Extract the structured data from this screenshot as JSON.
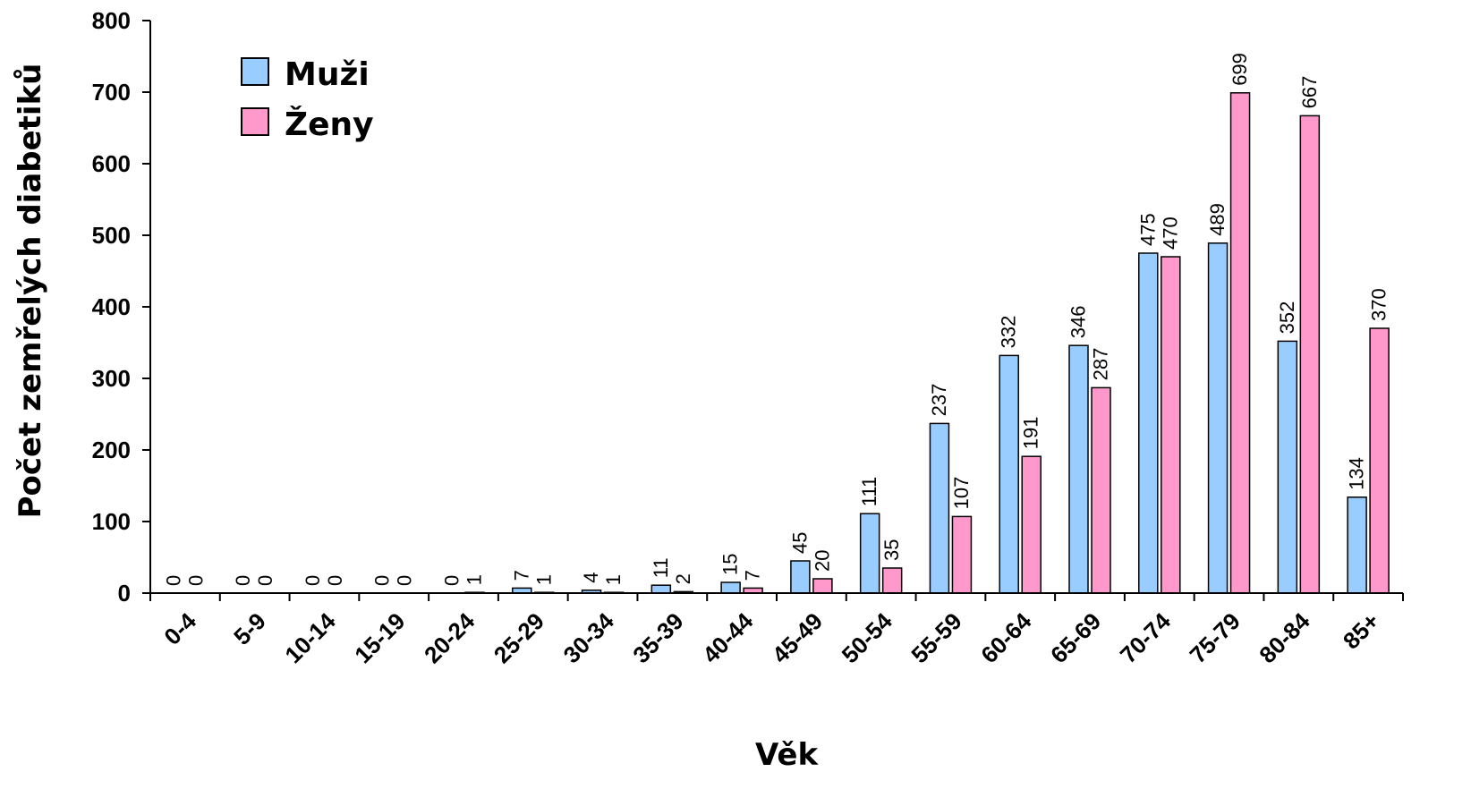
{
  "chart_data": {
    "type": "bar",
    "categories": [
      "0-4",
      "5-9",
      "10-14",
      "15-19",
      "20-24",
      "25-29",
      "30-34",
      "35-39",
      "40-44",
      "45-49",
      "50-54",
      "55-59",
      "60-64",
      "65-69",
      "70-74",
      "75-79",
      "80-84",
      "85+"
    ],
    "series": [
      {
        "name": "Muži",
        "color": "#99ccff",
        "values": [
          0,
          0,
          0,
          0,
          0,
          7,
          4,
          11,
          15,
          45,
          111,
          237,
          332,
          346,
          475,
          489,
          352,
          134
        ]
      },
      {
        "name": "Ženy",
        "color": "#ff99cc",
        "values": [
          0,
          0,
          0,
          0,
          1,
          1,
          1,
          2,
          7,
          20,
          35,
          107,
          191,
          287,
          470,
          699,
          667,
          370
        ]
      }
    ],
    "xlabel": "Věk",
    "ylabel": "Počet zemřelých diabetiků",
    "ylim": [
      0,
      800
    ],
    "yticks": [
      0,
      100,
      200,
      300,
      400,
      500,
      600,
      700,
      800
    ],
    "grid": false,
    "legend_position": "top-left"
  }
}
